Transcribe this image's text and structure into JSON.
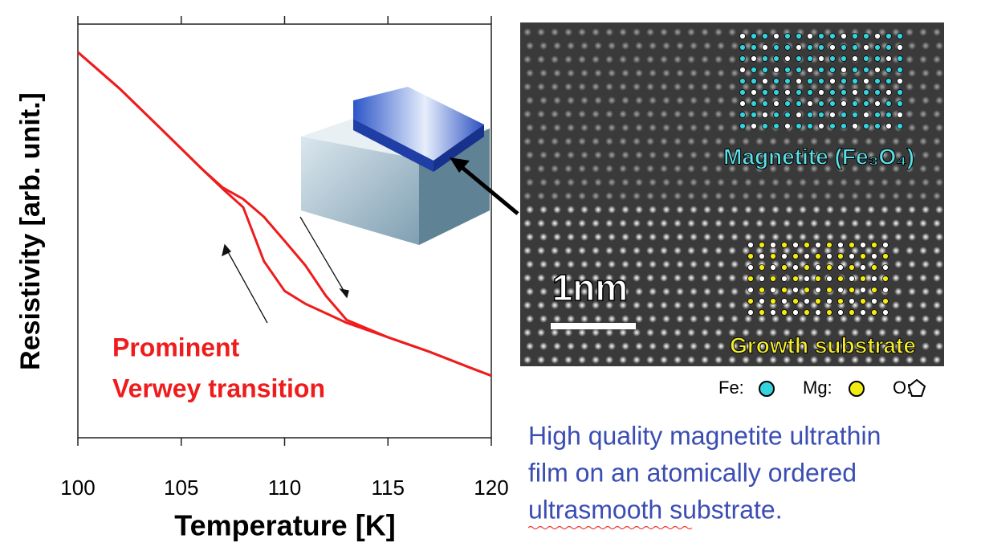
{
  "chart_data": {
    "type": "line",
    "xlabel": "Temperature [K]",
    "ylabel": "Resistivity [arb. unit.]",
    "x": [
      100,
      102,
      104,
      106,
      107,
      108,
      109,
      110,
      111,
      112,
      113,
      115,
      117,
      119,
      120
    ],
    "series": [
      {
        "color": "#ee1c1c",
        "values": [
          93.2,
          84.5,
          74.8,
          65,
          60.2,
          55.7,
          42.7,
          35.5,
          32.4,
          30.1,
          27.8,
          24.3,
          20.8,
          16.9,
          15.0
        ]
      },
      {
        "color": "#ee1c1c",
        "values": [
          93.2,
          84.5,
          74.8,
          65,
          60.5,
          57.7,
          53.4,
          47.6,
          41.7,
          34.3,
          28.5,
          24.3,
          20.8,
          16.9,
          15.0
        ]
      }
    ],
    "xlim": [
      100,
      120
    ],
    "xticks": [
      100,
      105,
      110,
      115,
      120
    ],
    "ylim": [
      0,
      100
    ],
    "annotations": [
      "Prominent",
      "Verwey transition"
    ]
  },
  "image": {
    "scale_label": "1nm",
    "film_label": "Magnetite (Fe₃O₄)",
    "substrate_label": "Growth substrate",
    "legend": [
      "Fe:",
      "Mg:",
      "O:"
    ]
  },
  "caption": [
    "High quality magnetite ultrathin",
    "film on an atomically ordered",
    "ultrasmooth substrate."
  ]
}
